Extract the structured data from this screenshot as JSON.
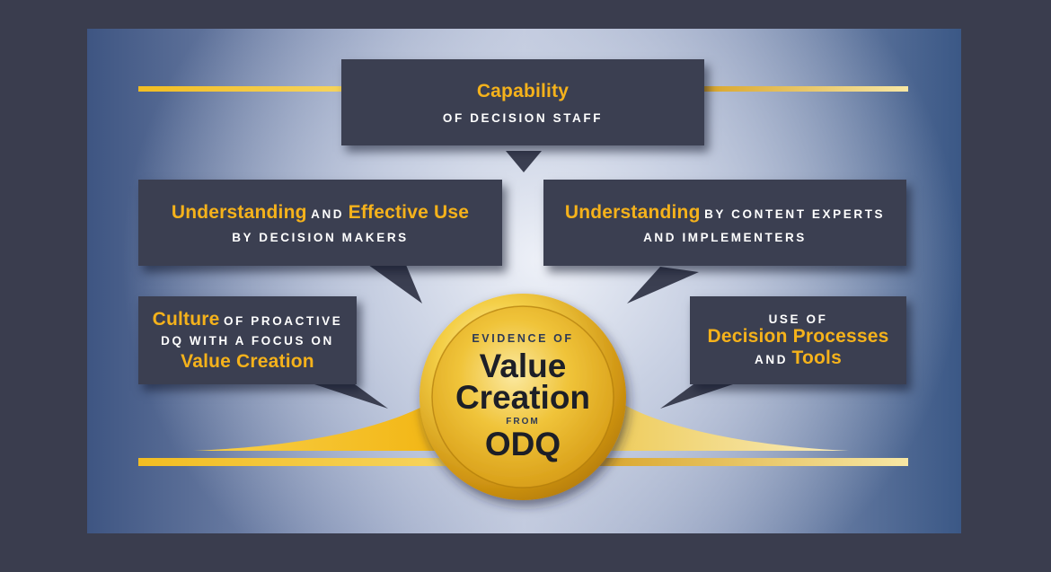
{
  "boxes": {
    "capability": {
      "gold": "Capability",
      "sub": "OF DECISION STAFF"
    },
    "makers": {
      "gold1": "Understanding",
      "and": "AND",
      "gold2": "Effective Use",
      "sub": "BY DECISION MAKERS"
    },
    "experts": {
      "gold": "Understanding",
      "rest": "BY CONTENT EXPERTS",
      "sub": "AND IMPLEMENTERS"
    },
    "culture": {
      "gold1": "Culture",
      "rest1": "OF PROACTIVE",
      "line2": "DQ WITH A FOCUS ON",
      "gold2": "Value Creation"
    },
    "tools": {
      "line1": "USE OF",
      "gold1": "Decision Processes",
      "and": "AND",
      "gold2": "Tools"
    }
  },
  "medal": {
    "top": "EVIDENCE OF",
    "big1": "Value",
    "big2": "Creation",
    "mid": "FROM",
    "big3": "ODQ"
  },
  "colors": {
    "background": "#3a3d4e",
    "box": "#3b3f51",
    "accent_gold": "#f5b21b",
    "medal_gold": "#e6b321"
  }
}
